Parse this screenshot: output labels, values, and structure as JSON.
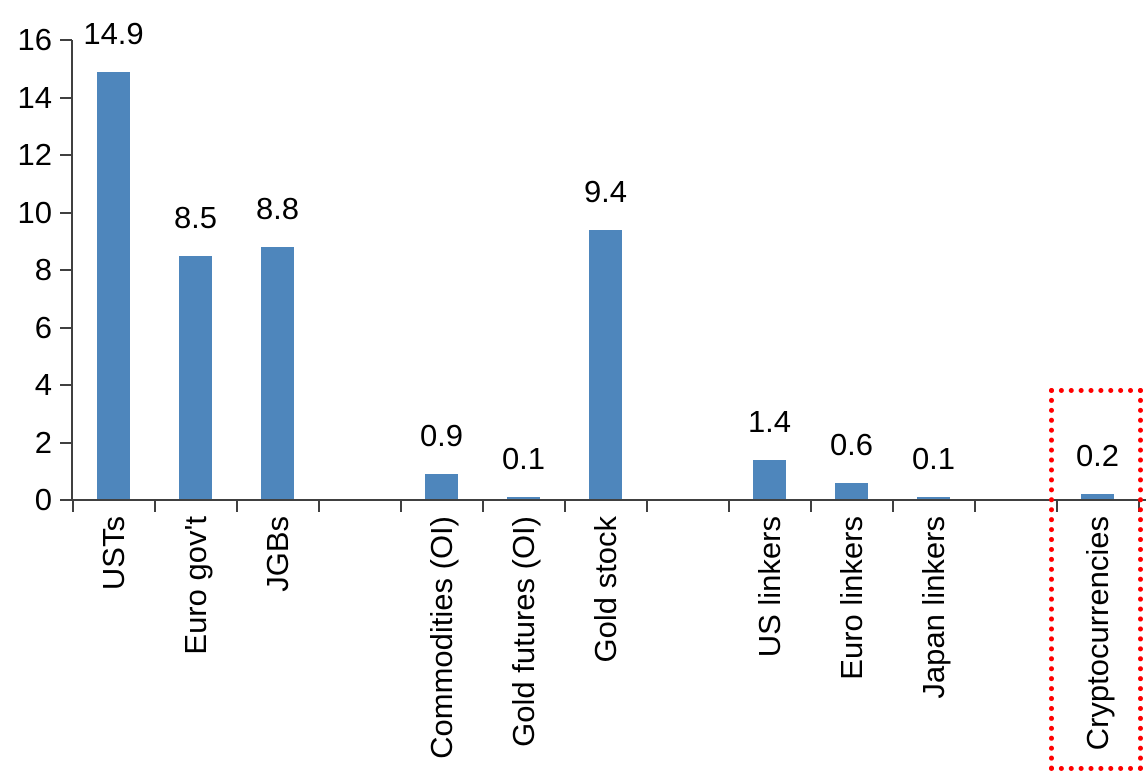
{
  "chart_data": {
    "type": "bar",
    "title": "",
    "xlabel": "",
    "ylabel": "",
    "categories": [
      "USTs",
      "Euro gov't",
      "JGBs",
      "Commodities (OI)",
      "Gold futures (OI)",
      "Gold stock",
      "US linkers",
      "Euro linkers",
      "Japan linkers",
      "Cryptocurrencies"
    ],
    "values": [
      14.9,
      8.5,
      8.8,
      0.9,
      0.1,
      9.4,
      1.4,
      0.6,
      0.1,
      0.2
    ],
    "data_labels": [
      "14.9",
      "8.5",
      "8.8",
      "0.9",
      "0.1",
      "9.4",
      "1.4",
      "0.6",
      "0.1",
      "0.2"
    ],
    "group_slots": [
      0,
      1,
      2,
      4,
      5,
      6,
      8,
      9,
      10,
      12
    ],
    "total_slots": 13,
    "ylim": [
      0,
      16
    ],
    "ytick_values": [
      0,
      2,
      4,
      6,
      8,
      10,
      12,
      14,
      16
    ],
    "ytick_labels": [
      "0",
      "2",
      "4",
      "6",
      "8",
      "10",
      "12",
      "14",
      "16"
    ],
    "grid": "off",
    "legend": "none",
    "bar_color": "#4e86bc",
    "axis_color": "#404040",
    "label_color": "#000000",
    "highlight": {
      "category": "Cryptocurrencies",
      "style": "dotted-box",
      "color": "#ff0000"
    }
  }
}
